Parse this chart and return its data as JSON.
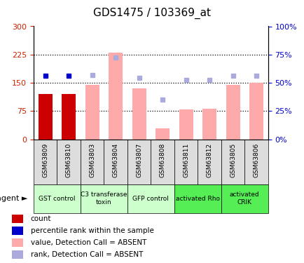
{
  "title": "GDS1475 / 103369_at",
  "samples": [
    "GSM63809",
    "GSM63810",
    "GSM63803",
    "GSM63804",
    "GSM63807",
    "GSM63808",
    "GSM63811",
    "GSM63812",
    "GSM63805",
    "GSM63806"
  ],
  "count_values": [
    120,
    120,
    0,
    0,
    0,
    0,
    0,
    0,
    0,
    0
  ],
  "count_is_present": [
    true,
    true,
    false,
    false,
    false,
    false,
    false,
    false,
    false,
    false
  ],
  "absent_bar_values": [
    0,
    0,
    145,
    230,
    135,
    30,
    80,
    82,
    145,
    150
  ],
  "absent_rank_values": [
    0,
    0,
    170,
    218,
    163,
    105,
    157,
    158,
    168,
    168
  ],
  "percentile_values": [
    168,
    168,
    0,
    0,
    0,
    0,
    0,
    0,
    0,
    0
  ],
  "percentile_is_present": [
    true,
    true,
    false,
    false,
    false,
    false,
    false,
    false,
    false,
    false
  ],
  "left_ylim": [
    0,
    300
  ],
  "right_ylim": [
    0,
    100
  ],
  "left_yticks": [
    0,
    75,
    150,
    225,
    300
  ],
  "right_yticks": [
    0,
    25,
    50,
    75,
    100
  ],
  "right_yticklabels": [
    "0%",
    "25%",
    "50%",
    "75%",
    "100%"
  ],
  "agent_groups": [
    {
      "label": "GST control",
      "start": 0,
      "end": 2,
      "color": "#ccffcc"
    },
    {
      "label": "C3 transferase\ntoxin",
      "start": 2,
      "end": 4,
      "color": "#ccffcc"
    },
    {
      "label": "GFP control",
      "start": 4,
      "end": 6,
      "color": "#ccffcc"
    },
    {
      "label": "activated Rho",
      "start": 6,
      "end": 8,
      "color": "#55ee55"
    },
    {
      "label": "activated\nCRIK",
      "start": 8,
      "end": 10,
      "color": "#55ee55"
    }
  ],
  "bar_color_present": "#cc0000",
  "bar_color_absent": "#ffaaaa",
  "rank_color_present": "#0000cc",
  "rank_color_absent": "#aaaadd",
  "title_fontsize": 11,
  "axis_label_color_left": "#cc2200",
  "axis_label_color_right": "#0000cc",
  "xlabel_bg": "#dddddd",
  "grid_dotted_values": [
    75,
    150,
    225
  ]
}
